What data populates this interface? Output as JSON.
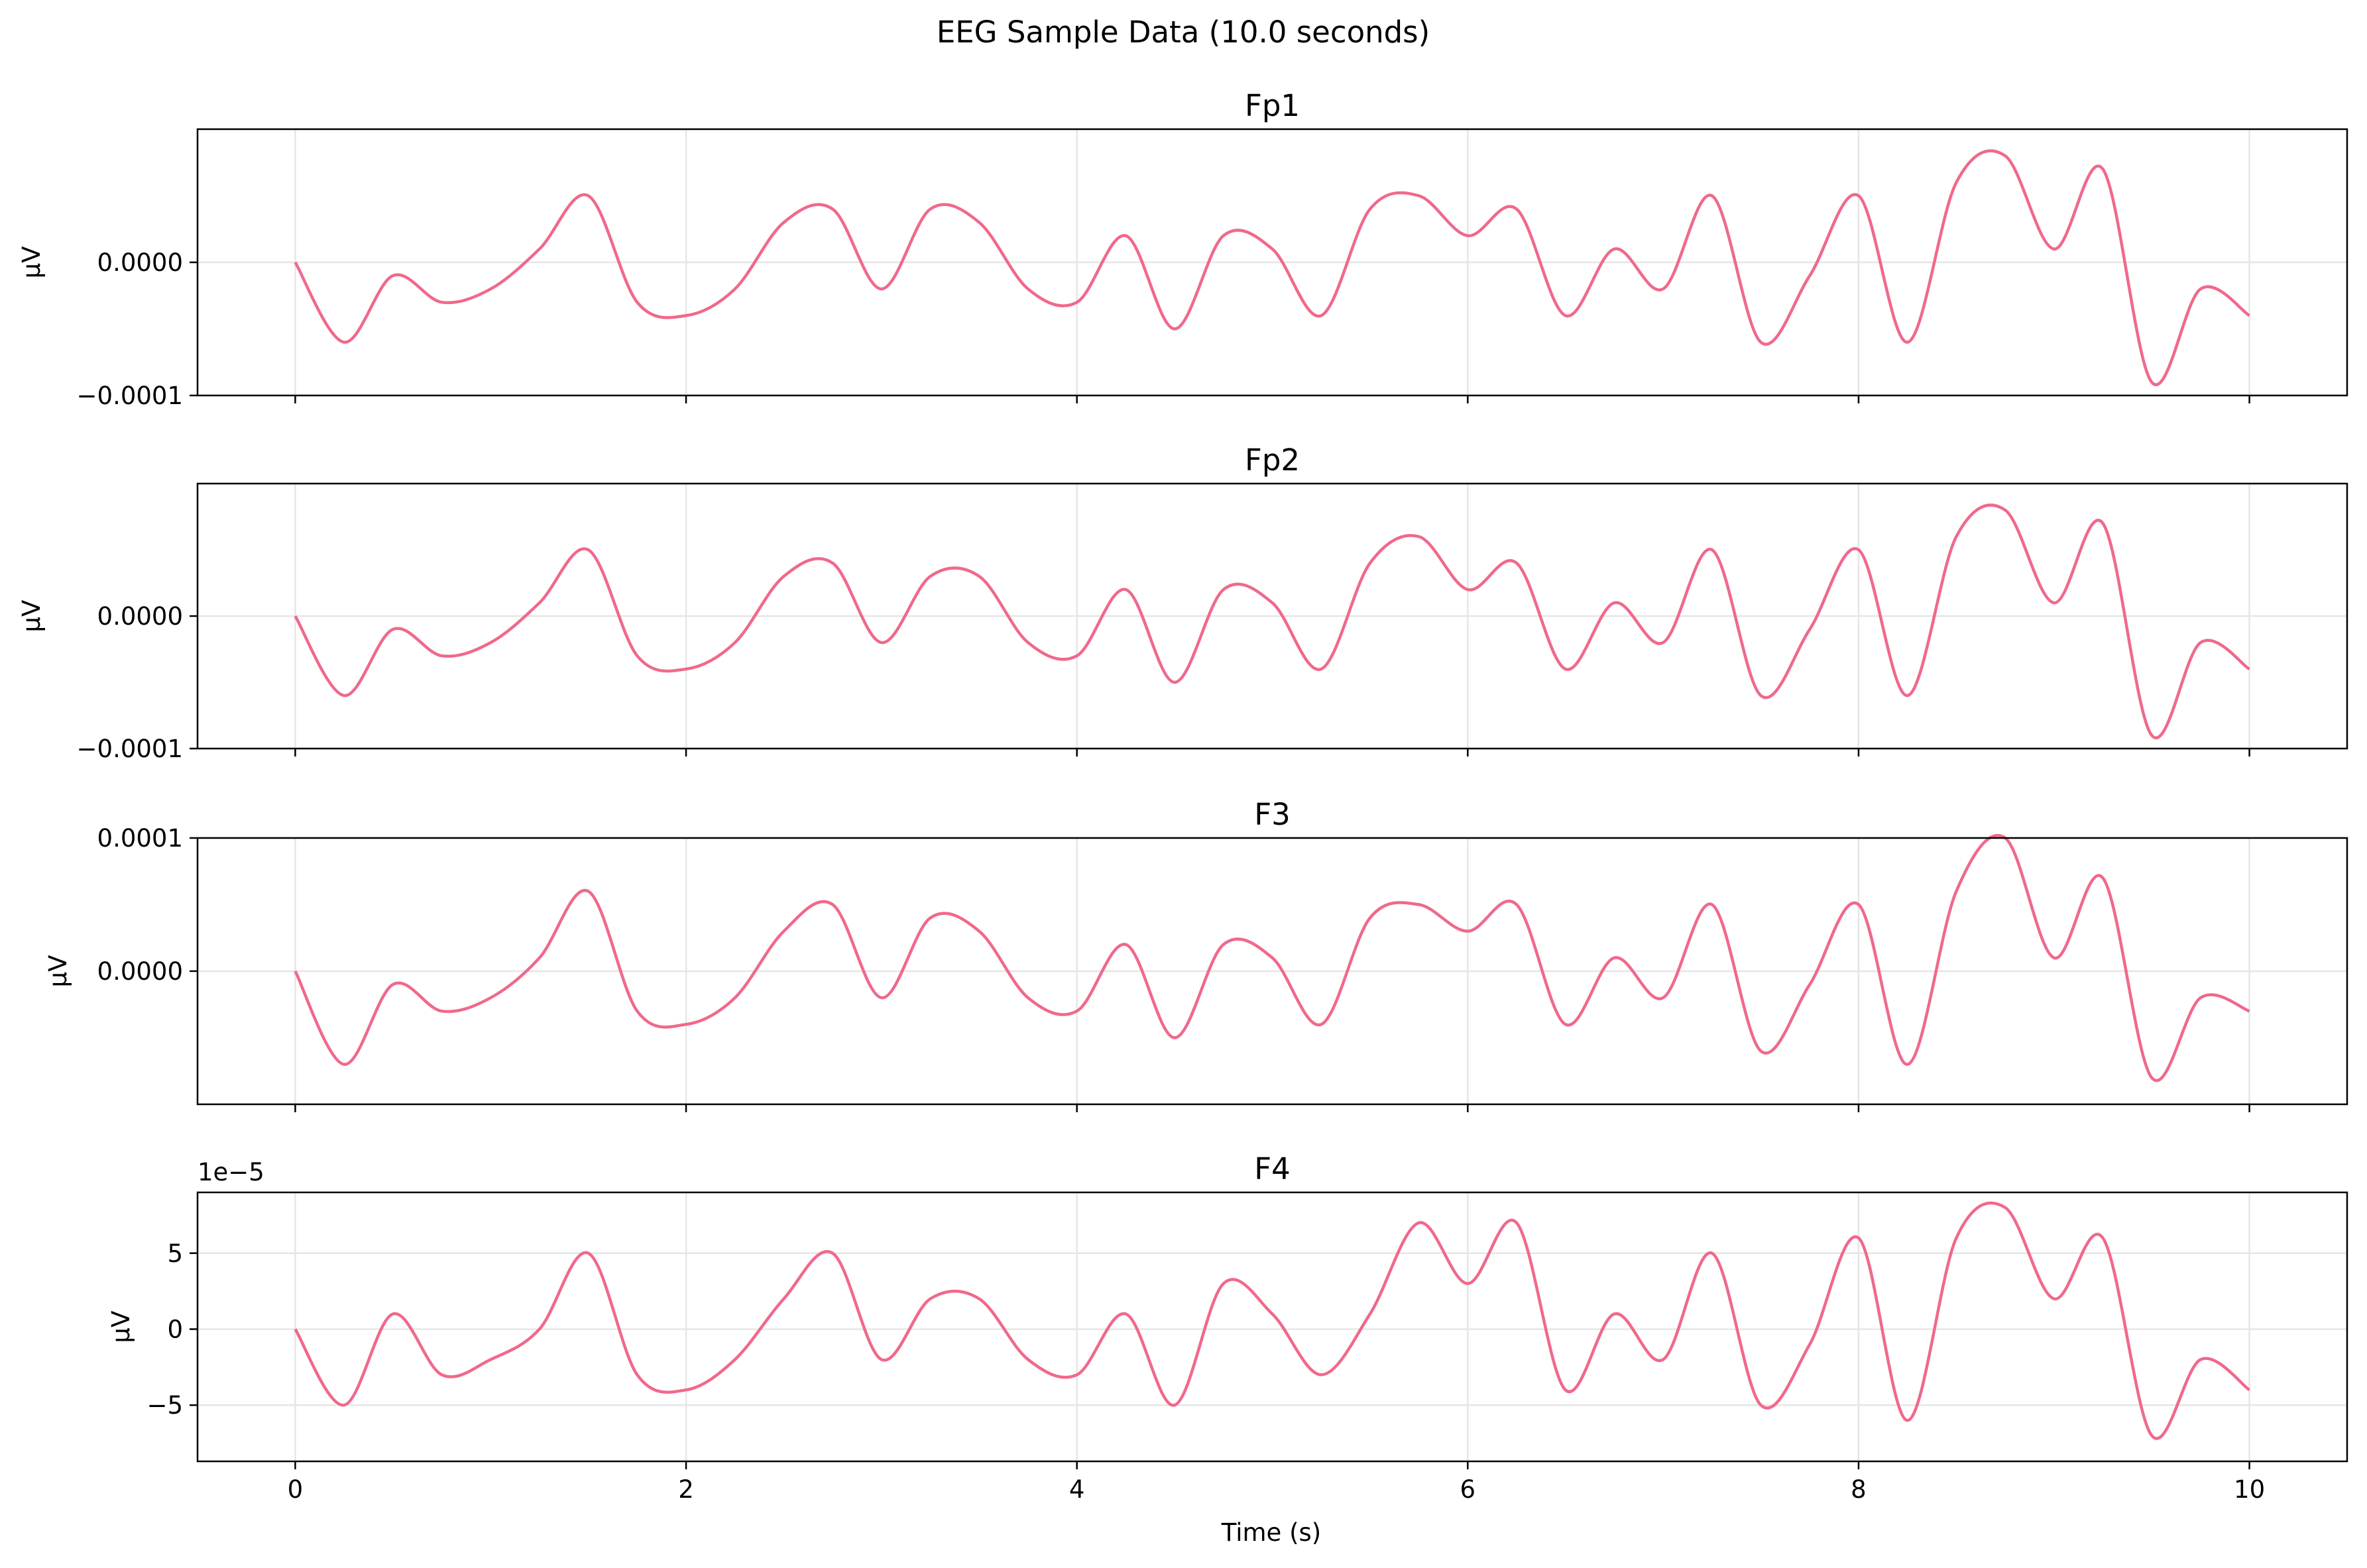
{
  "chart_data": {
    "type": "line",
    "title": "EEG Sample Data (10.0 seconds)",
    "xlabel": "Time (s)",
    "xlim": [
      -0.5,
      10.5
    ],
    "xticks": [
      0,
      2,
      4,
      6,
      8,
      10
    ],
    "xtick_labels": [
      "0",
      "2",
      "4",
      "6",
      "8",
      "10"
    ],
    "grid": true,
    "line_color": "#f0698a",
    "panels": [
      {
        "name": "Fp1",
        "title": "Fp1",
        "ylabel": "μV",
        "ylim": [
          -0.0001,
          0.0001
        ],
        "yticks": [
          -0.0001,
          0.0
        ],
        "ytick_labels": [
          "−0.0001",
          "0.0000"
        ],
        "offset_text": "",
        "x": [
          0.0,
          0.25,
          0.5,
          0.75,
          1.0,
          1.25,
          1.5,
          1.75,
          2.0,
          2.25,
          2.5,
          2.75,
          3.0,
          3.25,
          3.5,
          3.75,
          4.0,
          4.25,
          4.5,
          4.75,
          5.0,
          5.25,
          5.5,
          5.75,
          6.0,
          6.25,
          6.5,
          6.75,
          7.0,
          7.25,
          7.5,
          7.75,
          8.0,
          8.25,
          8.5,
          8.75,
          9.0,
          9.25,
          9.5,
          9.75,
          10.0
        ],
        "values": [
          0.0,
          -6e-05,
          -1e-05,
          -3e-05,
          -2e-05,
          1e-05,
          5e-05,
          -3e-05,
          -4e-05,
          -2e-05,
          3e-05,
          4e-05,
          -2e-05,
          4e-05,
          3e-05,
          -2e-05,
          -3e-05,
          2e-05,
          -5e-05,
          2e-05,
          1e-05,
          -4e-05,
          4e-05,
          5e-05,
          2e-05,
          4e-05,
          -4e-05,
          1e-05,
          -2e-05,
          5e-05,
          -6e-05,
          -1e-05,
          5e-05,
          -6e-05,
          6e-05,
          8e-05,
          1e-05,
          7e-05,
          -9e-05,
          -2e-05,
          -4e-05
        ]
      },
      {
        "name": "Fp2",
        "title": "Fp2",
        "ylabel": "μV",
        "ylim": [
          -0.0001,
          0.0001
        ],
        "yticks": [
          -0.0001,
          0.0
        ],
        "ytick_labels": [
          "−0.0001",
          "0.0000"
        ],
        "offset_text": "",
        "x": [
          0.0,
          0.25,
          0.5,
          0.75,
          1.0,
          1.25,
          1.5,
          1.75,
          2.0,
          2.25,
          2.5,
          2.75,
          3.0,
          3.25,
          3.5,
          3.75,
          4.0,
          4.25,
          4.5,
          4.75,
          5.0,
          5.25,
          5.5,
          5.75,
          6.0,
          6.25,
          6.5,
          6.75,
          7.0,
          7.25,
          7.5,
          7.75,
          8.0,
          8.25,
          8.5,
          8.75,
          9.0,
          9.25,
          9.5,
          9.75,
          10.0
        ],
        "values": [
          0.0,
          -6e-05,
          -1e-05,
          -3e-05,
          -2e-05,
          1e-05,
          5e-05,
          -3e-05,
          -4e-05,
          -2e-05,
          3e-05,
          4e-05,
          -2e-05,
          3e-05,
          3e-05,
          -2e-05,
          -3e-05,
          2e-05,
          -5e-05,
          2e-05,
          1e-05,
          -4e-05,
          4e-05,
          6e-05,
          2e-05,
          4e-05,
          -4e-05,
          1e-05,
          -2e-05,
          5e-05,
          -6e-05,
          -1e-05,
          5e-05,
          -6e-05,
          6e-05,
          8e-05,
          1e-05,
          7e-05,
          -9e-05,
          -2e-05,
          -4e-05
        ]
      },
      {
        "name": "F3",
        "title": "F3",
        "ylabel": "μV",
        "ylim": [
          -0.0001,
          0.0001
        ],
        "yticks": [
          0.0,
          0.0001
        ],
        "ytick_labels": [
          "0.0000",
          "0.0001"
        ],
        "offset_text": "",
        "x": [
          0.0,
          0.25,
          0.5,
          0.75,
          1.0,
          1.25,
          1.5,
          1.75,
          2.0,
          2.25,
          2.5,
          2.75,
          3.0,
          3.25,
          3.5,
          3.75,
          4.0,
          4.25,
          4.5,
          4.75,
          5.0,
          5.25,
          5.5,
          5.75,
          6.0,
          6.25,
          6.5,
          6.75,
          7.0,
          7.25,
          7.5,
          7.75,
          8.0,
          8.25,
          8.5,
          8.75,
          9.0,
          9.25,
          9.5,
          9.75,
          10.0
        ],
        "values": [
          0.0,
          -7e-05,
          -1e-05,
          -3e-05,
          -2e-05,
          1e-05,
          6e-05,
          -3e-05,
          -4e-05,
          -2e-05,
          3e-05,
          5e-05,
          -2e-05,
          4e-05,
          3e-05,
          -2e-05,
          -3e-05,
          2e-05,
          -5e-05,
          2e-05,
          1e-05,
          -4e-05,
          4e-05,
          5e-05,
          3e-05,
          5e-05,
          -4e-05,
          1e-05,
          -2e-05,
          5e-05,
          -6e-05,
          -1e-05,
          5e-05,
          -7e-05,
          6e-05,
          0.0001,
          1e-05,
          7e-05,
          -8e-05,
          -2e-05,
          -3e-05
        ]
      },
      {
        "name": "F4",
        "title": "F4",
        "ylabel": "μV",
        "ylim": [
          -8.7e-05,
          9e-05
        ],
        "yticks": [
          -5e-05,
          0.0,
          5e-05
        ],
        "ytick_labels": [
          "−5",
          "0",
          "5"
        ],
        "offset_text": "1e−5",
        "x": [
          0.0,
          0.25,
          0.5,
          0.75,
          1.0,
          1.25,
          1.5,
          1.75,
          2.0,
          2.25,
          2.5,
          2.75,
          3.0,
          3.25,
          3.5,
          3.75,
          4.0,
          4.25,
          4.5,
          4.75,
          5.0,
          5.25,
          5.5,
          5.75,
          6.0,
          6.25,
          6.5,
          6.75,
          7.0,
          7.25,
          7.5,
          7.75,
          8.0,
          8.25,
          8.5,
          8.75,
          9.0,
          9.25,
          9.5,
          9.75,
          10.0
        ],
        "values": [
          0.0,
          -5e-05,
          1e-05,
          -3e-05,
          -2e-05,
          0.0,
          5e-05,
          -3e-05,
          -4e-05,
          -2e-05,
          2e-05,
          5e-05,
          -2e-05,
          2e-05,
          2e-05,
          -2e-05,
          -3e-05,
          1e-05,
          -5e-05,
          3e-05,
          1e-05,
          -3e-05,
          1e-05,
          7e-05,
          3e-05,
          7e-05,
          -4e-05,
          1e-05,
          -2e-05,
          5e-05,
          -5e-05,
          -1e-05,
          6e-05,
          -6e-05,
          6e-05,
          8e-05,
          2e-05,
          6e-05,
          -7e-05,
          -2e-05,
          -4e-05
        ]
      }
    ]
  }
}
